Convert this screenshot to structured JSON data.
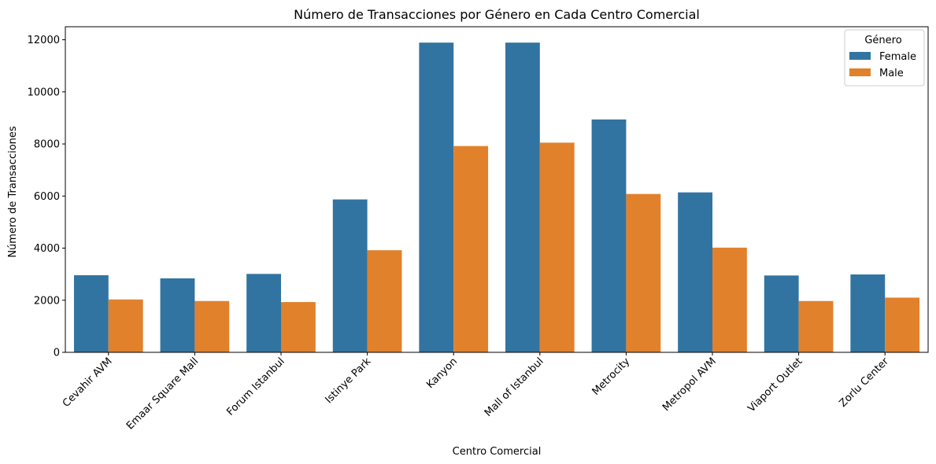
{
  "chart_data": {
    "type": "bar",
    "title": "Número de Transacciones por Género en Cada Centro Comercial",
    "xlabel": "Centro Comercial",
    "ylabel": "Número de Transacciones",
    "categories": [
      "Cevahir AVM",
      "Emaar Square Mall",
      "Forum Istanbul",
      "Istinye Park",
      "Kanyon",
      "Mall of Istanbul",
      "Metrocity",
      "Metropol AVM",
      "Viaport Outlet",
      "Zorlu Center"
    ],
    "series": [
      {
        "name": "Female",
        "color": "#3274a1",
        "values": [
          2960,
          2840,
          3010,
          5870,
          11890,
          11890,
          8940,
          6140,
          2950,
          2990
        ]
      },
      {
        "name": "Male",
        "color": "#e1812c",
        "values": [
          2030,
          1970,
          1930,
          3920,
          7920,
          8050,
          6080,
          4020,
          1970,
          2100
        ]
      }
    ],
    "ylim": [
      0,
      12500
    ],
    "yticks": [
      0,
      2000,
      4000,
      6000,
      8000,
      10000,
      12000
    ],
    "ytick_labels": [
      "0",
      "2000",
      "4000",
      "6000",
      "8000",
      "10000",
      "12000"
    ],
    "xtick_rotation": 45,
    "legend": {
      "title": "Género",
      "position": "top-right"
    },
    "grid": false
  }
}
